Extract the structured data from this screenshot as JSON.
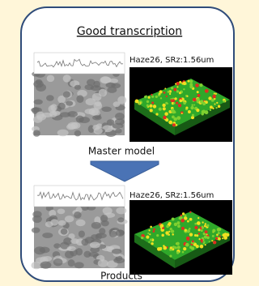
{
  "title": "Good transcription",
  "sections": [
    {
      "label": "Haze26, SRz:1.56um",
      "caption": "Master model"
    },
    {
      "label": "Haze26, SRz:1.56um",
      "caption": "Products"
    }
  ]
}
